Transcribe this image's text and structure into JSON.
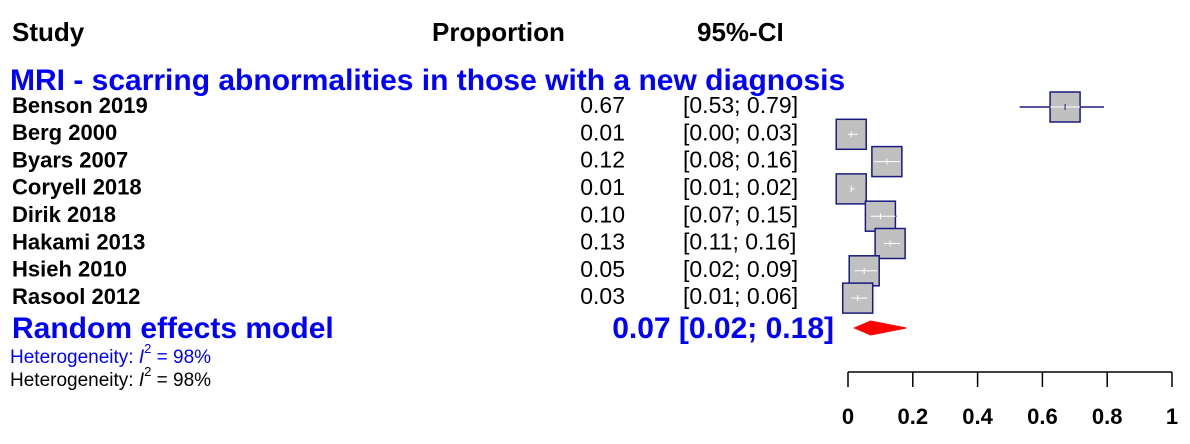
{
  "chart_data": {
    "type": "forest",
    "headers": [
      "Study",
      "Proportion",
      "95%-CI"
    ],
    "subgroup_title": "MRI - scarring abnormalities in those with a new diagnosis",
    "categories": [
      "Benson 2019",
      "Berg 2000",
      "Byars 2007",
      "Coryell 2018",
      "Dirik 2018",
      "Hakami 2013",
      "Hsieh 2010",
      "Rasool 2012"
    ],
    "values": [
      0.67,
      0.01,
      0.12,
      0.01,
      0.1,
      0.13,
      0.05,
      0.03
    ],
    "value_labels": [
      "0.67",
      "0.01",
      "0.12",
      "0.01",
      "0.10",
      "0.13",
      "0.05",
      "0.03"
    ],
    "ci_low": [
      0.53,
      0.0,
      0.08,
      0.01,
      0.07,
      0.11,
      0.02,
      0.01
    ],
    "ci_high": [
      0.79,
      0.03,
      0.16,
      0.02,
      0.15,
      0.16,
      0.09,
      0.06
    ],
    "ci_labels": [
      "[0.53; 0.79]",
      "[0.00; 0.03]",
      "[0.08; 0.16]",
      "[0.01; 0.02]",
      "[0.07; 0.15]",
      "[0.11; 0.16]",
      "[0.02; 0.09]",
      "[0.01; 0.06]"
    ],
    "pooled": {
      "name": "Random effects model",
      "value": 0.07,
      "ci_low": 0.02,
      "ci_high": 0.18,
      "label": "0.07 [0.02; 0.18]",
      "color": "#ff0000"
    },
    "heterogeneity": [
      "Heterogeneity: ",
      "I",
      "2",
      " = 98%"
    ],
    "color": "#c0c0c0",
    "xlim": [
      0,
      1
    ],
    "xticks": [
      0,
      0.2,
      0.4,
      0.6,
      0.8,
      1
    ]
  }
}
